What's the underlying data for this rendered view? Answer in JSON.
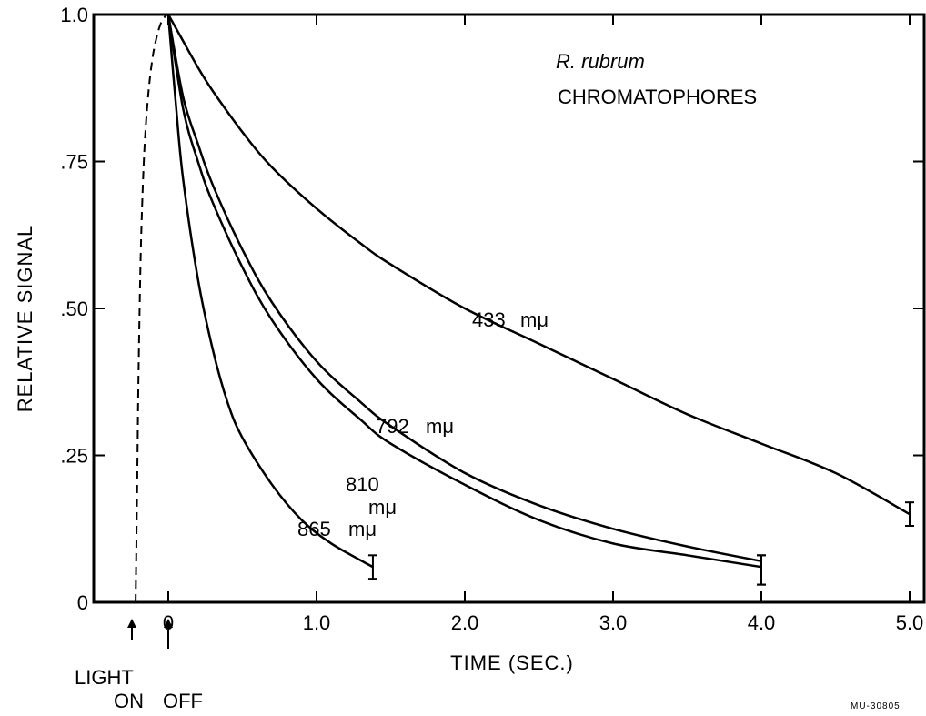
{
  "chart_data": {
    "type": "line",
    "title": "R. rubrum",
    "subtitle": "CHROMATOPHORES",
    "xlabel": "TIME (SEC.)",
    "ylabel": "RELATIVE SIGNAL",
    "xlim": [
      -0.5,
      5.1
    ],
    "ylim": [
      0,
      1.0
    ],
    "x_ticks": [
      0,
      1.0,
      2.0,
      3.0,
      4.0,
      5.0
    ],
    "x_tick_labels": [
      "0",
      "1.0",
      "2.0",
      "3.0",
      "4.0",
      "5.0"
    ],
    "y_ticks": [
      0,
      0.25,
      0.5,
      0.75,
      1.0
    ],
    "y_tick_labels": [
      "0",
      ".25",
      ".50",
      ".75",
      "1.0"
    ],
    "grid": false,
    "series": [
      {
        "name": "433 mμ",
        "label_number": "433",
        "label_unit": "mμ",
        "x": [
          0,
          0.1,
          0.2,
          0.3,
          0.5,
          0.7,
          1.0,
          1.3,
          1.5,
          2.0,
          2.5,
          3.0,
          3.5,
          4.0,
          4.5,
          5.0
        ],
        "y": [
          1.0,
          0.955,
          0.91,
          0.87,
          0.8,
          0.74,
          0.67,
          0.61,
          0.575,
          0.5,
          0.44,
          0.38,
          0.32,
          0.27,
          0.22,
          0.15
        ],
        "error_at": 5.0,
        "error_range": [
          0.13,
          0.17
        ]
      },
      {
        "name": "792 mμ",
        "label_number": "792",
        "label_unit": "mμ",
        "x": [
          0,
          0.1,
          0.2,
          0.3,
          0.5,
          0.7,
          1.0,
          1.3,
          1.5,
          2.0,
          2.5,
          3.0,
          3.5,
          4.0
        ],
        "y": [
          1.0,
          0.86,
          0.78,
          0.71,
          0.6,
          0.51,
          0.41,
          0.34,
          0.3,
          0.22,
          0.165,
          0.125,
          0.095,
          0.07
        ],
        "error_at": 4.0,
        "error_range": [
          0.03,
          0.08
        ]
      },
      {
        "name": "810 mμ",
        "label_number": "810",
        "label_unit": "mμ",
        "x": [
          0,
          0.1,
          0.2,
          0.3,
          0.5,
          0.7,
          1.0,
          1.3,
          1.5,
          2.0,
          2.5,
          3.0,
          3.5,
          4.0
        ],
        "y": [
          1.0,
          0.84,
          0.75,
          0.68,
          0.57,
          0.48,
          0.38,
          0.31,
          0.27,
          0.2,
          0.14,
          0.1,
          0.08,
          0.06
        ],
        "error_at": 4.0,
        "error_range": [
          0.03,
          0.08
        ]
      },
      {
        "name": "865 mμ",
        "label_number": "865",
        "label_unit": "mμ",
        "x": [
          0,
          0.05,
          0.1,
          0.2,
          0.3,
          0.4,
          0.5,
          0.7,
          0.9,
          1.1,
          1.38
        ],
        "y": [
          1.0,
          0.85,
          0.72,
          0.55,
          0.43,
          0.34,
          0.28,
          0.2,
          0.14,
          0.1,
          0.06
        ],
        "error_at": 1.38,
        "error_range": [
          0.04,
          0.08
        ]
      }
    ],
    "rise_curve": {
      "style": "dashed",
      "x": [
        -0.22,
        -0.21,
        -0.2,
        -0.185,
        -0.165,
        -0.14,
        -0.11,
        -0.08,
        -0.05,
        -0.02,
        0
      ],
      "y": [
        0,
        0.2,
        0.4,
        0.6,
        0.75,
        0.85,
        0.92,
        0.96,
        0.985,
        0.997,
        1.0
      ]
    },
    "markers": [
      {
        "x": -0.25,
        "label": "LIGHT ON"
      },
      {
        "x": 0,
        "label": "OFF"
      }
    ]
  },
  "annotations": {
    "light": "LIGHT",
    "on": "ON",
    "off": "OFF",
    "figure_id": "MU-30805"
  }
}
